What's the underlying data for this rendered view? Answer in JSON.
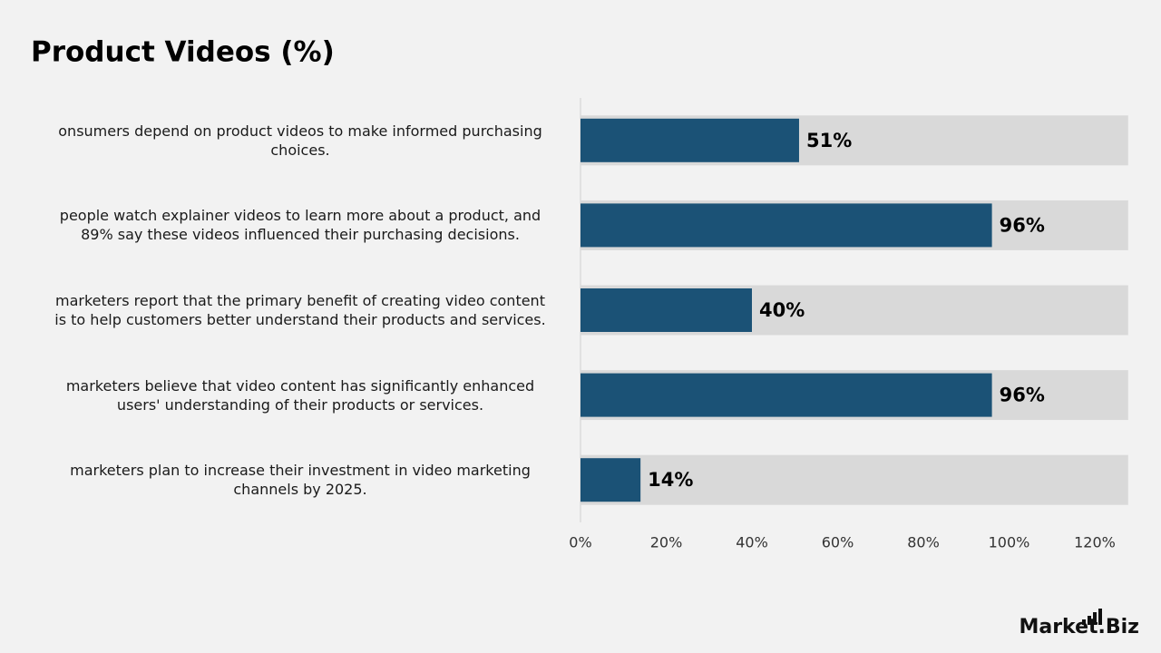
{
  "chart_data": {
    "type": "bar",
    "orientation": "horizontal",
    "title": "Product Videos (%)",
    "categories": [
      "onsumers depend on product videos to make informed purchasing\nchoices.",
      "people watch explainer videos to learn more about a product, and\n89% say these videos influenced their purchasing decisions.",
      "marketers report that the primary benefit of creating video content\nis to help customers better understand their products and services.",
      "marketers believe that video content has significantly enhanced\nusers' understanding of their products or services.",
      "marketers plan to increase their investment in video marketing\nchannels by 2025."
    ],
    "values": [
      51,
      96,
      40,
      96,
      14
    ],
    "value_labels": [
      "51%",
      "96%",
      "40%",
      "96%",
      "14%"
    ],
    "color": "#1b5276",
    "track_color": "#d9d9d9",
    "xlim": [
      0,
      128
    ],
    "xticks": [
      {
        "value": 0,
        "label": "0%"
      },
      {
        "value": 20,
        "label": "20%"
      },
      {
        "value": 40,
        "label": "40%"
      },
      {
        "value": 60,
        "label": "60%"
      },
      {
        "value": 80,
        "label": "80%"
      },
      {
        "value": 100,
        "label": "100%"
      },
      {
        "value": 120,
        "label": "120%"
      }
    ],
    "grid": false
  },
  "logo": "Market.Biz"
}
